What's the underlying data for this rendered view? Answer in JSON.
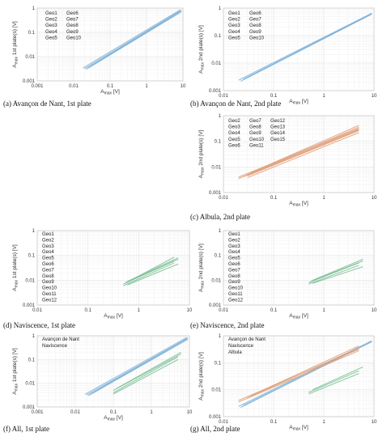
{
  "colors": {
    "avancon": "#7fb2d8",
    "albula": "#e0a07a",
    "naviscence": "#7dbf98",
    "grid": "#e6e6e6",
    "frame": "#c8c8c8"
  },
  "chart_data": [
    {
      "type": "line",
      "log": true,
      "caption": "(a) Avançon de Nant, 1st plate",
      "xlabel": "A_max [V]",
      "ylabel": "A_max 1st plate(s) [V]",
      "xlim": [
        0.001,
        10
      ],
      "ylim": [
        0.001,
        1
      ],
      "xticks": [
        "0.001",
        "0.01",
        "0.1",
        "1",
        "10"
      ],
      "yticks": [
        "0.001",
        "0.01",
        "0.1",
        "1"
      ],
      "legend": {
        "columns": [
          [
            "Geo1",
            "Geo2",
            "Geo3",
            "Geo4",
            "Geo5"
          ],
          [
            "Geo6",
            "Geo7",
            "Geo8",
            "Geo9",
            "Geo10"
          ]
        ]
      },
      "series": [
        {
          "group": "avancon",
          "x": [
            0.018,
            8.5
          ],
          "y": [
            0.0034,
            0.85
          ]
        },
        {
          "group": "avancon",
          "x": [
            0.02,
            9
          ],
          "y": [
            0.0032,
            0.8
          ]
        },
        {
          "group": "avancon",
          "x": [
            0.022,
            9
          ],
          "y": [
            0.003,
            0.7
          ]
        },
        {
          "group": "avancon",
          "x": [
            0.025,
            8
          ],
          "y": [
            0.0035,
            0.72
          ]
        },
        {
          "group": "avancon",
          "x": [
            0.03,
            9
          ],
          "y": [
            0.004,
            0.78
          ]
        }
      ]
    },
    {
      "type": "line",
      "log": true,
      "caption": "(b) Avançon de Nant, 2nd plate",
      "xlabel": "A_max [V]",
      "ylabel": "A_max 2nd plate(s) [V]",
      "xlim": [
        0.01,
        10
      ],
      "ylim": [
        0.001,
        1
      ],
      "xticks": [
        "0.01",
        "0.1",
        "1",
        "10"
      ],
      "yticks": [
        "0.001",
        "0.01",
        "0.1",
        "1"
      ],
      "legend": {
        "columns": [
          [
            "Geo1",
            "Geo2",
            "Geo3",
            "Geo4",
            "Geo5"
          ],
          [
            "Geo6",
            "Geo7",
            "Geo8",
            "Geo9",
            "Geo10"
          ]
        ]
      },
      "series": [
        {
          "group": "avancon",
          "x": [
            0.02,
            9
          ],
          "y": [
            0.0024,
            0.65
          ]
        },
        {
          "group": "avancon",
          "x": [
            0.022,
            9
          ],
          "y": [
            0.0022,
            0.6
          ]
        },
        {
          "group": "avancon",
          "x": [
            0.025,
            9
          ],
          "y": [
            0.0026,
            0.62
          ]
        },
        {
          "group": "avancon",
          "x": [
            0.03,
            9
          ],
          "y": [
            0.003,
            0.63
          ]
        }
      ]
    },
    {
      "type": "line",
      "log": true,
      "caption": "(c) Albula, 2nd plate",
      "xlabel": "A_max [V]",
      "ylabel": "A_max 2nd plate(s) [V]",
      "xlim": [
        0.01,
        10
      ],
      "ylim": [
        0.001,
        1
      ],
      "xticks": [
        "0.01",
        "0.1",
        "1",
        "10"
      ],
      "yticks": [
        "0.001",
        "0.01",
        "0.1",
        "1"
      ],
      "legend": {
        "columns": [
          [
            "Geo2",
            "Geo3",
            "Geo4",
            "Geo5",
            "Geo6"
          ],
          [
            "Geo7",
            "Geo8",
            "Geo9",
            "Geo10",
            "Geo11"
          ],
          [
            "Geo12",
            "Geo13",
            "Geo14",
            "Geo15"
          ]
        ]
      },
      "series": [
        {
          "group": "albula",
          "x": [
            0.02,
            5
          ],
          "y": [
            0.0035,
            0.28
          ]
        },
        {
          "group": "albula",
          "x": [
            0.02,
            5
          ],
          "y": [
            0.004,
            0.32
          ]
        },
        {
          "group": "albula",
          "x": [
            0.025,
            5
          ],
          "y": [
            0.0042,
            0.3
          ]
        },
        {
          "group": "albula",
          "x": [
            0.03,
            5
          ],
          "y": [
            0.005,
            0.36
          ]
        },
        {
          "group": "albula",
          "x": [
            0.03,
            5
          ],
          "y": [
            0.0045,
            0.26
          ]
        },
        {
          "group": "albula",
          "x": [
            0.035,
            5
          ],
          "y": [
            0.006,
            0.42
          ]
        },
        {
          "group": "albula",
          "x": [
            0.03,
            5
          ],
          "y": [
            0.0038,
            0.22
          ]
        }
      ]
    },
    {
      "type": "line",
      "log": true,
      "caption": "(d) Naviscence, 1st plate",
      "xlabel": "A_max [V]",
      "ylabel": "A_max 1st plate(s) [V]",
      "xlim": [
        0.01,
        10
      ],
      "ylim": [
        0.001,
        1
      ],
      "xticks": [
        "0.01",
        "0.1",
        "1",
        "10"
      ],
      "yticks": [
        "0.001",
        "0.01",
        "0.1",
        "1"
      ],
      "legend": {
        "columns": [
          [
            "Geo1",
            "Geo2",
            "Geo3",
            "Geo4",
            "Geo5",
            "Geo6",
            "Geo7",
            "Geo8",
            "Geo9",
            "Geo10",
            "Geo11",
            "Geo12"
          ]
        ]
      },
      "series": [
        {
          "group": "naviscence",
          "x": [
            0.5,
            5
          ],
          "y": [
            0.006,
            0.05
          ]
        },
        {
          "group": "naviscence",
          "x": [
            0.5,
            5
          ],
          "y": [
            0.007,
            0.06
          ]
        },
        {
          "group": "naviscence",
          "x": [
            0.55,
            6
          ],
          "y": [
            0.008,
            0.07
          ]
        },
        {
          "group": "naviscence",
          "x": [
            0.6,
            6
          ],
          "y": [
            0.009,
            0.08
          ]
        },
        {
          "group": "naviscence",
          "x": [
            0.6,
            6
          ],
          "y": [
            0.0065,
            0.045
          ]
        },
        {
          "group": "naviscence",
          "x": [
            0.7,
            5
          ],
          "y": [
            0.01,
            0.085
          ]
        }
      ]
    },
    {
      "type": "line",
      "log": true,
      "caption": "(e) Naviscence, 2nd plate",
      "xlabel": "A_max [V]",
      "ylabel": "A_max 2nd plate(s) [V]",
      "xlim": [
        0.01,
        10
      ],
      "ylim": [
        0.001,
        1
      ],
      "xticks": [
        "0.01",
        "0.1",
        "1",
        "10"
      ],
      "yticks": [
        "0.001",
        "0.01",
        "0.1",
        "1"
      ],
      "legend": {
        "columns": [
          [
            "Geo1",
            "Geo2",
            "Geo3",
            "Geo4",
            "Geo5",
            "Geo6",
            "Geo7",
            "Geo8",
            "Geo9",
            "Geo10",
            "Geo11",
            "Geo12"
          ]
        ]
      },
      "series": [
        {
          "group": "naviscence",
          "x": [
            0.5,
            5
          ],
          "y": [
            0.007,
            0.04
          ]
        },
        {
          "group": "naviscence",
          "x": [
            0.5,
            5
          ],
          "y": [
            0.008,
            0.05
          ]
        },
        {
          "group": "naviscence",
          "x": [
            0.55,
            6
          ],
          "y": [
            0.009,
            0.06
          ]
        },
        {
          "group": "naviscence",
          "x": [
            0.6,
            6
          ],
          "y": [
            0.01,
            0.07
          ]
        },
        {
          "group": "naviscence",
          "x": [
            0.6,
            6
          ],
          "y": [
            0.0075,
            0.035
          ]
        }
      ]
    },
    {
      "type": "line",
      "log": true,
      "caption": "(f) All, 1st plate",
      "xlabel": "A_max [V]",
      "ylabel": "A_max 1st plate(s) [V]",
      "xlim": [
        0.001,
        10
      ],
      "ylim": [
        0.001,
        1
      ],
      "xticks": [
        "0.001",
        "0.01",
        "0.1",
        "1",
        "10"
      ],
      "yticks": [
        "0.001",
        "0.01",
        "0.1",
        "1"
      ],
      "legend": {
        "columns": [
          [
            "Avançon de Nant",
            "Naviscence"
          ]
        ],
        "colored": [
          "avancon",
          "naviscence"
        ]
      },
      "series": [
        {
          "group": "avancon",
          "x": [
            0.018,
            8.5
          ],
          "y": [
            0.0034,
            0.85
          ]
        },
        {
          "group": "avancon",
          "x": [
            0.02,
            9
          ],
          "y": [
            0.0032,
            0.8
          ]
        },
        {
          "group": "avancon",
          "x": [
            0.022,
            9
          ],
          "y": [
            0.003,
            0.7
          ]
        },
        {
          "group": "avancon",
          "x": [
            0.025,
            8
          ],
          "y": [
            0.0035,
            0.72
          ]
        },
        {
          "group": "avancon",
          "x": [
            0.03,
            9
          ],
          "y": [
            0.004,
            0.78
          ]
        },
        {
          "group": "naviscence",
          "x": [
            0.1,
            5
          ],
          "y": [
            0.004,
            0.13
          ]
        },
        {
          "group": "naviscence",
          "x": [
            0.1,
            6
          ],
          "y": [
            0.005,
            0.17
          ]
        },
        {
          "group": "naviscence",
          "x": [
            0.12,
            6
          ],
          "y": [
            0.006,
            0.2
          ]
        },
        {
          "group": "naviscence",
          "x": [
            0.1,
            5
          ],
          "y": [
            0.0035,
            0.1
          ]
        }
      ]
    },
    {
      "type": "line",
      "log": true,
      "caption": "(g) All, 2nd plate",
      "xlabel": "A_max [V]",
      "ylabel": "A_max 2nd plate(s) [V]",
      "xlim": [
        0.01,
        10
      ],
      "ylim": [
        0.001,
        1
      ],
      "xticks": [
        "0.01",
        "0.1",
        "1",
        "10"
      ],
      "yticks": [
        "0.001",
        "0.01",
        "0.1",
        "1"
      ],
      "legend": {
        "columns": [
          [
            "Avançon de Nant",
            "Naviscence",
            "Albula"
          ]
        ],
        "colored": [
          "avancon",
          "naviscence",
          "albula"
        ]
      },
      "series": [
        {
          "group": "avancon",
          "x": [
            0.02,
            9
          ],
          "y": [
            0.0024,
            0.65
          ]
        },
        {
          "group": "avancon",
          "x": [
            0.022,
            9
          ],
          "y": [
            0.0022,
            0.6
          ]
        },
        {
          "group": "avancon",
          "x": [
            0.025,
            9
          ],
          "y": [
            0.0026,
            0.62
          ]
        },
        {
          "group": "albula",
          "x": [
            0.02,
            5
          ],
          "y": [
            0.0035,
            0.28
          ]
        },
        {
          "group": "albula",
          "x": [
            0.02,
            5
          ],
          "y": [
            0.004,
            0.32
          ]
        },
        {
          "group": "albula",
          "x": [
            0.03,
            5
          ],
          "y": [
            0.005,
            0.36
          ]
        },
        {
          "group": "albula",
          "x": [
            0.035,
            5
          ],
          "y": [
            0.006,
            0.42
          ]
        },
        {
          "group": "naviscence",
          "x": [
            0.5,
            5
          ],
          "y": [
            0.007,
            0.04
          ]
        },
        {
          "group": "naviscence",
          "x": [
            0.5,
            5
          ],
          "y": [
            0.008,
            0.05
          ]
        },
        {
          "group": "naviscence",
          "x": [
            0.6,
            6
          ],
          "y": [
            0.01,
            0.07
          ]
        }
      ]
    }
  ]
}
